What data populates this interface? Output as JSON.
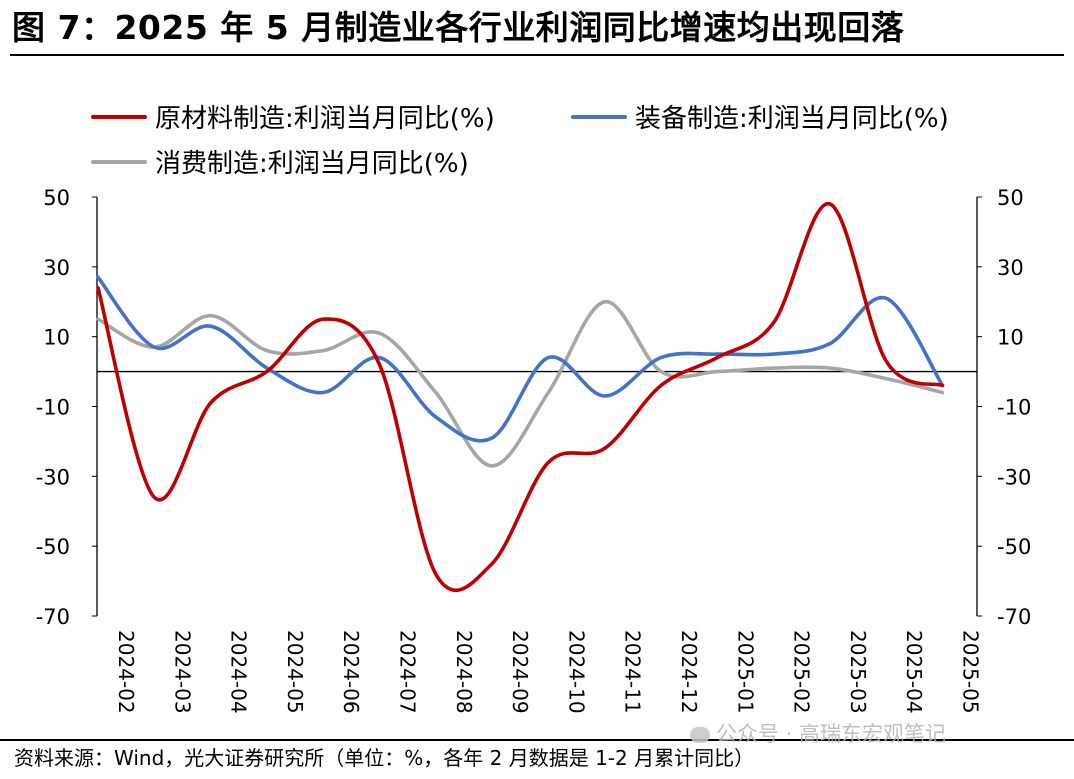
{
  "figure": {
    "title": "图 7：2025 年 5 月制造业各行业利润同比增速均出现回落",
    "source": "资料来源：Wind，光大证券研究所（单位：%，各年 2 月数据是 1-2 月累计同比）",
    "watermark": "公众号 · 高瑞东宏观笔记"
  },
  "chart_data": {
    "type": "line",
    "title": "",
    "xlabel": "",
    "ylabel": "",
    "x": [
      "2024-02",
      "2024-03",
      "2024-04",
      "2024-05",
      "2024-06",
      "2024-07",
      "2024-08",
      "2024-09",
      "2024-10",
      "2024-11",
      "2024-12",
      "2025-01",
      "2025-02",
      "2025-03",
      "2025-04",
      "2025-05"
    ],
    "ylim": [
      -70,
      50
    ],
    "yticks": [
      "50",
      "30",
      "10",
      "-10",
      "-30",
      "-50",
      "-70"
    ],
    "grid": false,
    "zero_line": true,
    "legend_position": "top-left",
    "series": [
      {
        "name": "原材料制造:利润当月同比(%)",
        "color": "#C00000",
        "values": [
          24,
          -36,
          -9,
          0,
          15,
          2,
          -58,
          -55,
          -26,
          -22,
          -4,
          4,
          14,
          48,
          3,
          -4
        ]
      },
      {
        "name": "装备制造:利润当月同比(%)",
        "color": "#4472C4",
        "values": [
          27,
          7,
          13,
          1,
          -6,
          4,
          -13,
          -19,
          4,
          -7,
          4,
          5,
          5,
          8,
          21,
          -4
        ]
      },
      {
        "name": "消费制造:利润当月同比(%)",
        "color": "#A6A6A6",
        "values": [
          15,
          7,
          16,
          6,
          6,
          11,
          -6,
          -27,
          -6,
          20,
          0,
          0,
          1,
          1,
          -2,
          -6
        ]
      }
    ]
  }
}
